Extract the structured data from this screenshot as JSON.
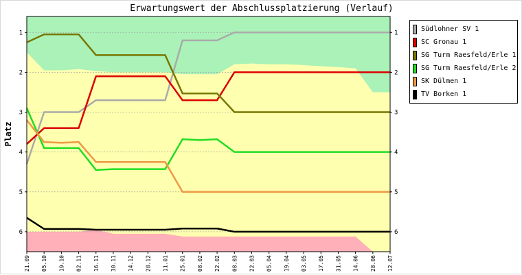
{
  "chart_data": {
    "type": "line",
    "title": "Erwartungswert der Abschlussplatzierung (Verlauf)",
    "ylabel": "Platz",
    "ylim": [
      0.6,
      6.5
    ],
    "yticks": [
      1,
      2,
      3,
      4,
      5,
      6
    ],
    "categories": [
      "21.09",
      "05.10",
      "19.10",
      "02.11",
      "16.11",
      "30.11",
      "14.12",
      "28.12",
      "11.01",
      "25.01",
      "08.02",
      "22.02",
      "08.03",
      "22.03",
      "05.04",
      "19.04",
      "03.05",
      "17.05",
      "31.05",
      "14.06",
      "28.06",
      "12.07"
    ],
    "bands": {
      "green_lower_edge": [
        1.5,
        1.95,
        1.95,
        1.92,
        1.97,
        2.0,
        2.0,
        2.0,
        2.0,
        2.05,
        2.05,
        2.05,
        1.8,
        1.78,
        1.8,
        1.8,
        1.82,
        1.85,
        1.87,
        1.9,
        2.5,
        2.5
      ],
      "red_upper_edge": [
        6.0,
        6.0,
        6.0,
        6.0,
        5.95,
        6.05,
        6.05,
        6.05,
        6.05,
        6.12,
        6.12,
        6.12,
        6.12,
        6.12,
        6.12,
        6.12,
        6.12,
        6.12,
        6.12,
        6.12,
        6.5,
        6.5
      ],
      "colors": {
        "green": "#aaf2b8",
        "yellow": "#ffffb0",
        "red": "#ffb0b8"
      }
    },
    "series": [
      {
        "name": "Südlohner SV 1",
        "color": "#aaaaaa",
        "values": [
          4.3,
          3.0,
          3.0,
          3.0,
          2.7,
          2.7,
          2.7,
          2.7,
          2.7,
          1.2,
          1.2,
          1.2,
          1.0,
          1.0,
          1.0,
          1.0,
          1.0,
          1.0,
          1.0,
          1.0,
          1.0,
          1.0
        ]
      },
      {
        "name": "SC Gronau 1",
        "color": "#dd0000",
        "values": [
          3.8,
          3.4,
          3.4,
          3.4,
          2.1,
          2.1,
          2.1,
          2.1,
          2.1,
          2.7,
          2.7,
          2.7,
          2.0,
          2.0,
          2.0,
          2.0,
          2.0,
          2.0,
          2.0,
          2.0,
          2.0,
          2.0
        ]
      },
      {
        "name": "SG Turm Raesfeld/Erle 1",
        "color": "#777700",
        "values": [
          1.25,
          1.05,
          1.05,
          1.05,
          1.57,
          1.57,
          1.57,
          1.57,
          1.57,
          2.53,
          2.53,
          2.53,
          3.0,
          3.0,
          3.0,
          3.0,
          3.0,
          3.0,
          3.0,
          3.0,
          3.0,
          3.0
        ]
      },
      {
        "name": "SG Turm Raesfeld/Erle 2",
        "color": "#22dd22",
        "values": [
          2.9,
          3.9,
          3.9,
          3.9,
          4.45,
          4.43,
          4.43,
          4.43,
          4.43,
          3.68,
          3.7,
          3.68,
          4.0,
          4.0,
          4.0,
          4.0,
          4.0,
          4.0,
          4.0,
          4.0,
          4.0,
          4.0
        ]
      },
      {
        "name": "SK Dülmen 1",
        "color": "#ee9944",
        "values": [
          3.2,
          3.75,
          3.77,
          3.75,
          4.25,
          4.25,
          4.25,
          4.25,
          4.25,
          5.0,
          5.0,
          5.0,
          5.0,
          5.0,
          5.0,
          5.0,
          5.0,
          5.0,
          5.0,
          5.0,
          5.0,
          5.0
        ]
      },
      {
        "name": "TV Borken 1",
        "color": "#000000",
        "values": [
          5.65,
          5.93,
          5.93,
          5.93,
          5.95,
          5.95,
          5.95,
          5.95,
          5.95,
          5.92,
          5.92,
          5.92,
          6.0,
          6.0,
          6.0,
          6.0,
          6.0,
          6.0,
          6.0,
          6.0,
          6.0,
          6.0
        ]
      }
    ]
  }
}
